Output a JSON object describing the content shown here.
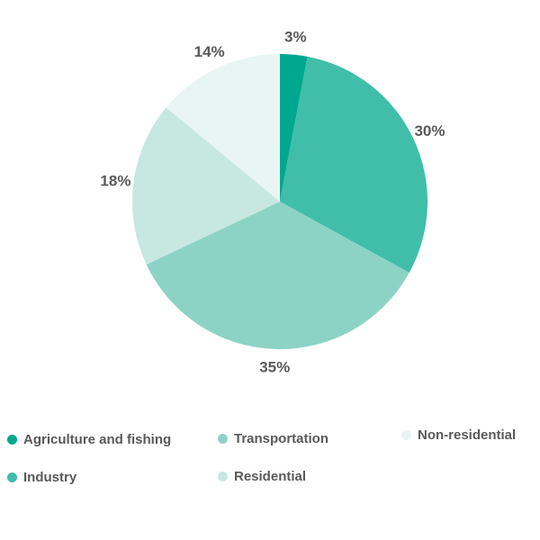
{
  "chart_data": {
    "type": "pie",
    "title": "",
    "start_angle_deg": 0,
    "direction": "clockwise",
    "slices": [
      {
        "name": "Agriculture and fishing",
        "value": 3,
        "label": "3%",
        "color": "#00A88F"
      },
      {
        "name": "Industry",
        "value": 30,
        "label": "30%",
        "color": "#40BEAA"
      },
      {
        "name": "Transportation",
        "value": 35,
        "label": "35%",
        "color": "#8DD3C5"
      },
      {
        "name": "Residential",
        "value": 18,
        "label": "18%",
        "color": "#C6E8E1"
      },
      {
        "name": "Non-residential",
        "value": 14,
        "label": "14%",
        "color": "#E9F5F3"
      }
    ],
    "legend_placement": "bottom"
  }
}
